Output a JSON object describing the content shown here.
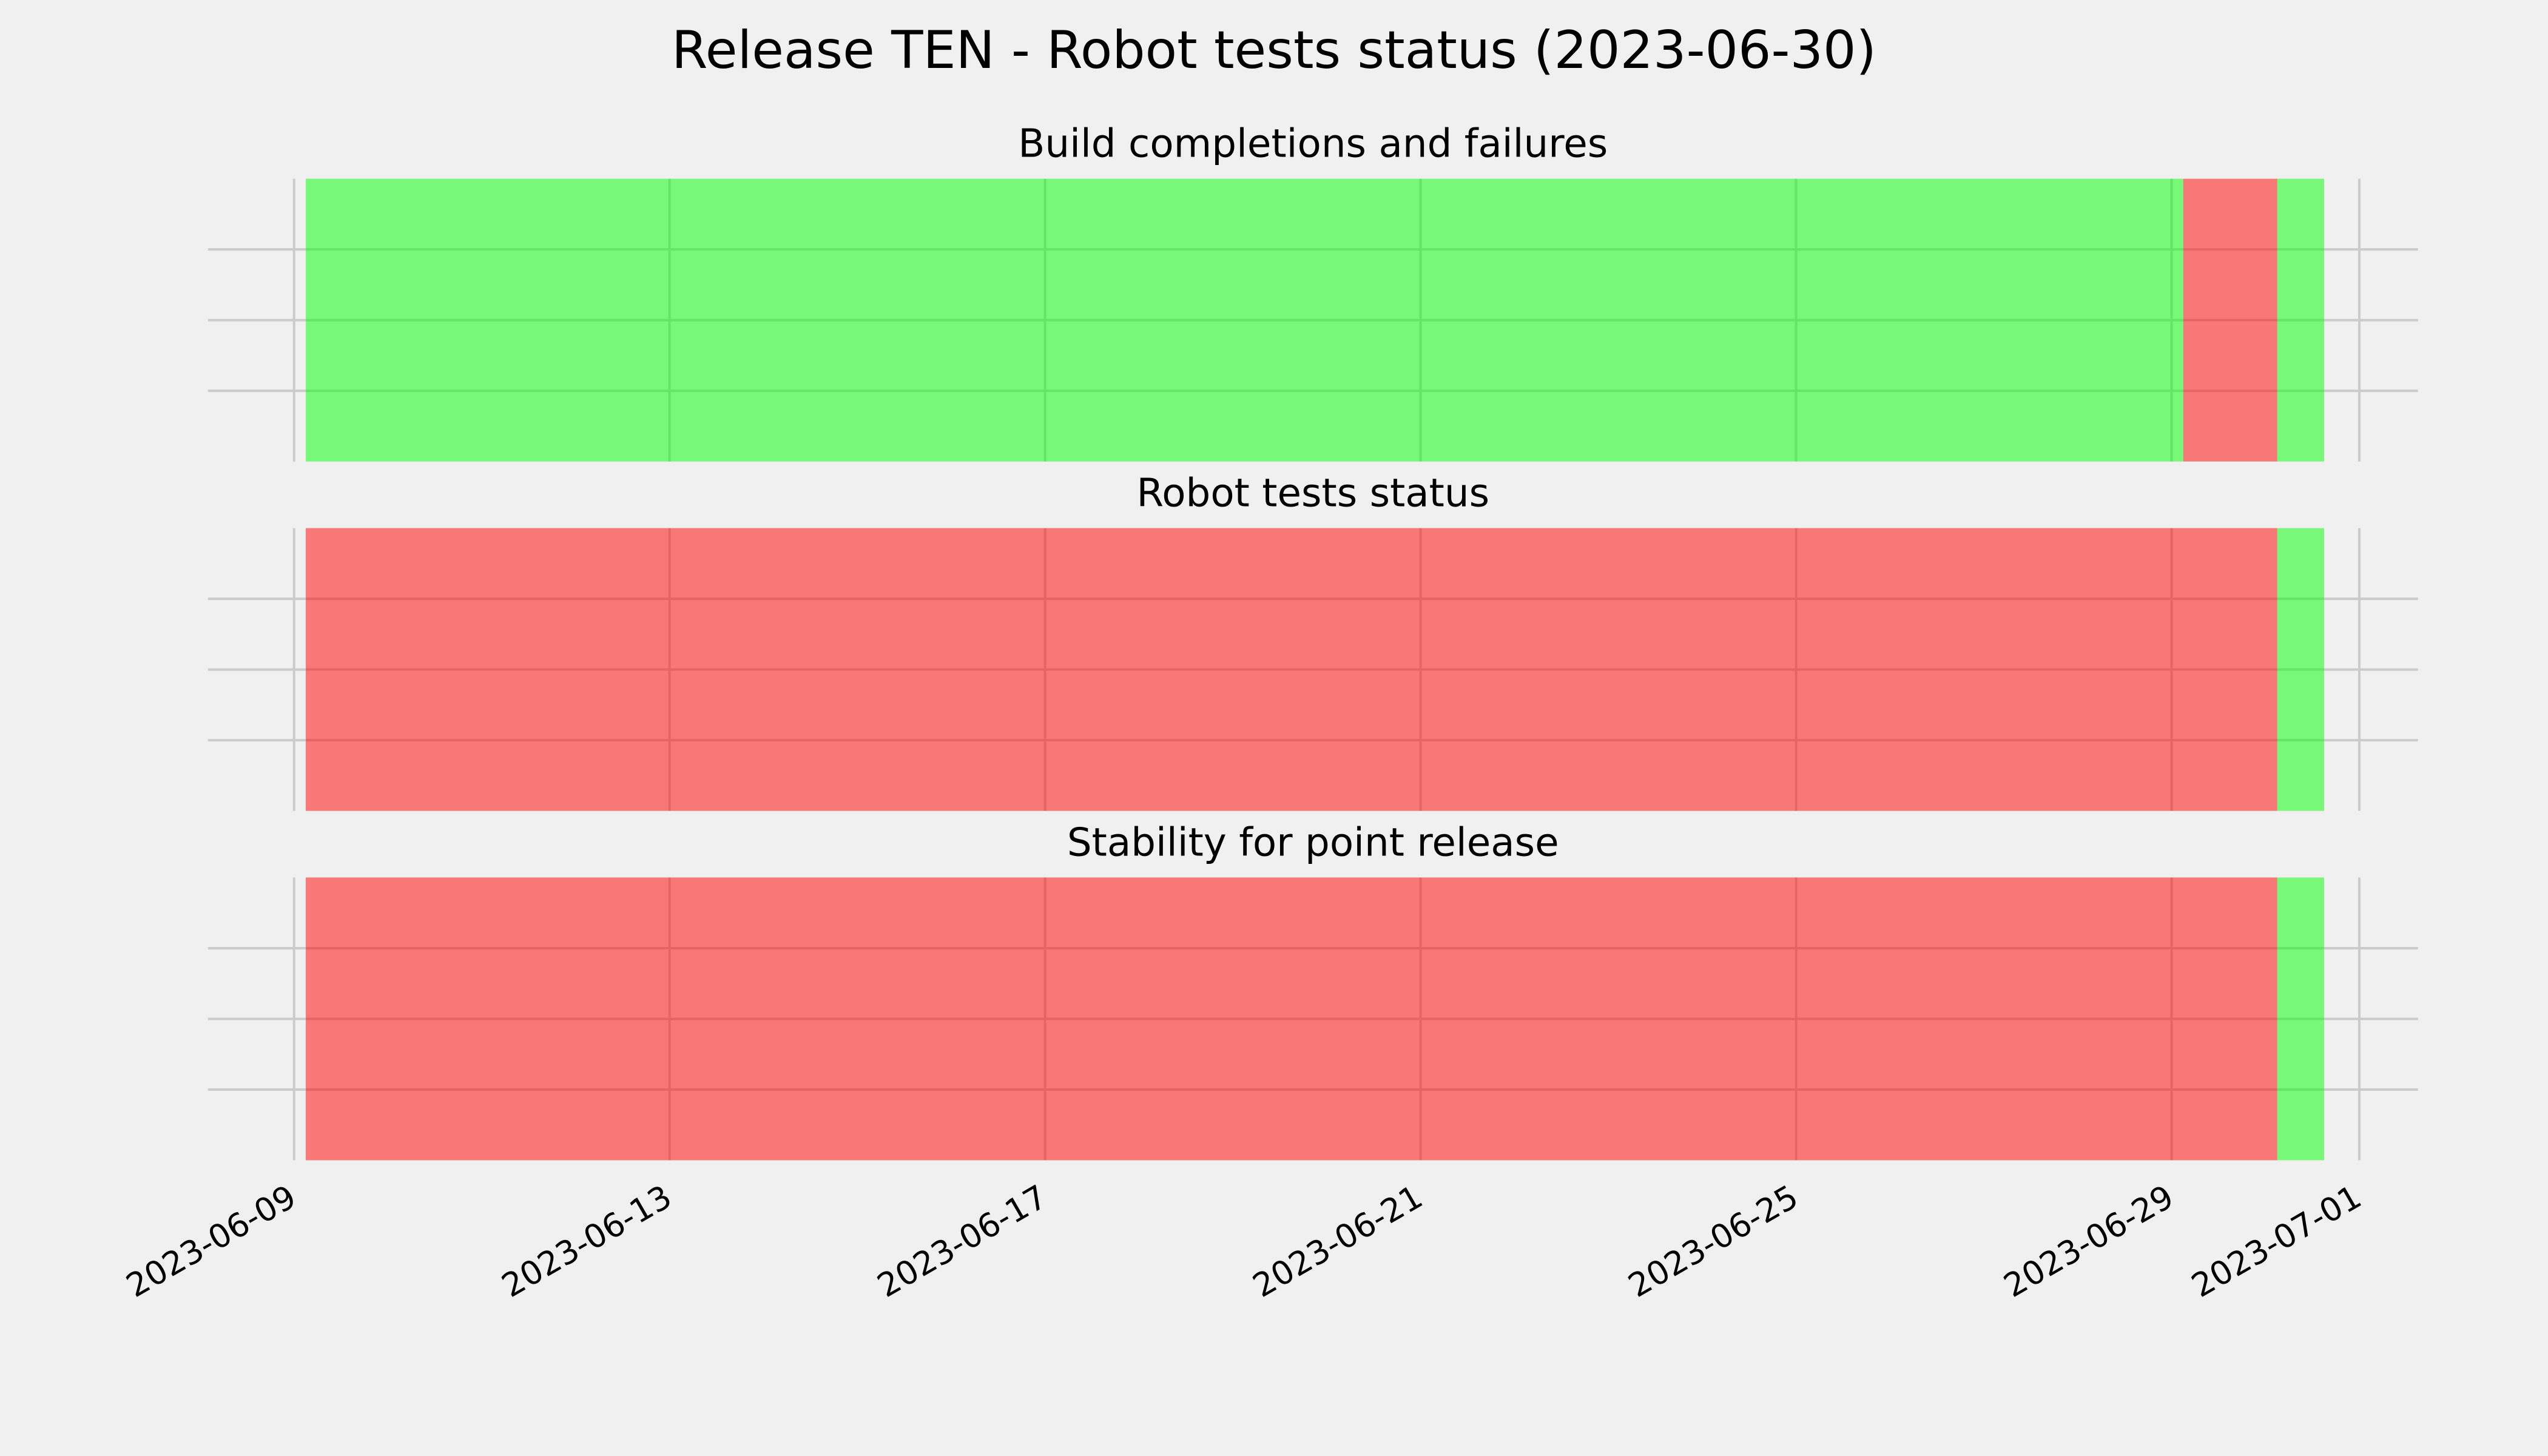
{
  "title": "Release TEN - Robot tests status (2023-06-30)",
  "chart_data": [
    {
      "type": "timeline",
      "title": "Build completions and failures",
      "xlim": [
        "2023-06-08T02:00",
        "2023-07-01T15:00"
      ],
      "xticks": [
        "2023-06-09",
        "2023-06-13",
        "2023-06-17",
        "2023-06-21",
        "2023-06-25",
        "2023-06-29",
        "2023-07-01"
      ],
      "ylim": [
        0,
        1
      ],
      "yticks": [
        0.25,
        0.5,
        0.75
      ],
      "grid": true,
      "show_xtick_labels": false,
      "alpha": 0.5,
      "segments": [
        {
          "start": "2023-06-09T03:00",
          "end": "2023-06-29T03:00",
          "color": "#00ff00"
        },
        {
          "start": "2023-06-29T03:00",
          "end": "2023-06-30T03:00",
          "color": "#ff0000"
        },
        {
          "start": "2023-06-30T03:00",
          "end": "2023-06-30T15:00",
          "color": "#00ff00"
        }
      ]
    },
    {
      "type": "timeline",
      "title": "Robot tests status",
      "xlim": [
        "2023-06-08T02:00",
        "2023-07-01T15:00"
      ],
      "xticks": [
        "2023-06-09",
        "2023-06-13",
        "2023-06-17",
        "2023-06-21",
        "2023-06-25",
        "2023-06-29",
        "2023-07-01"
      ],
      "ylim": [
        0,
        1
      ],
      "yticks": [
        0.25,
        0.5,
        0.75
      ],
      "grid": true,
      "show_xtick_labels": false,
      "alpha": 0.5,
      "segments": [
        {
          "start": "2023-06-09T03:00",
          "end": "2023-06-30T03:00",
          "color": "#ff0000"
        },
        {
          "start": "2023-06-30T03:00",
          "end": "2023-06-30T15:00",
          "color": "#00ff00"
        }
      ]
    },
    {
      "type": "timeline",
      "title": "Stability for point release",
      "xlim": [
        "2023-06-08T02:00",
        "2023-07-01T15:00"
      ],
      "xticks": [
        "2023-06-09",
        "2023-06-13",
        "2023-06-17",
        "2023-06-21",
        "2023-06-25",
        "2023-06-29",
        "2023-07-01"
      ],
      "ylim": [
        0,
        1
      ],
      "yticks": [
        0.25,
        0.5,
        0.75
      ],
      "grid": true,
      "show_xtick_labels": true,
      "alpha": 0.5,
      "segments": [
        {
          "start": "2023-06-09T03:00",
          "end": "2023-06-30T03:00",
          "color": "#ff0000"
        },
        {
          "start": "2023-06-30T03:00",
          "end": "2023-06-30T15:00",
          "color": "#00ff00"
        }
      ]
    }
  ]
}
